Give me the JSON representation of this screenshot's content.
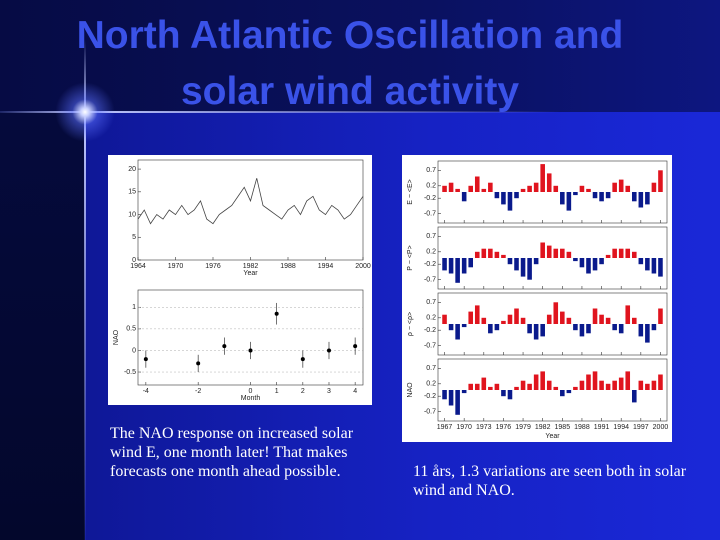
{
  "slide": {
    "title_lines": [
      "North Atlantic Oscillation and",
      "solar wind activity"
    ],
    "left_caption": "The NAO response on increased solar wind E, one month later! That makes forecasts one month ahead possible.",
    "right_caption": "11 års, 1.3 variations are seen both in solar wind and NAO."
  },
  "chart_data": [
    {
      "type": "line",
      "xlabel": "Year",
      "color": "#444444",
      "x": [
        1964,
        1965,
        1966,
        1967,
        1968,
        1969,
        1970,
        1971,
        1972,
        1973,
        1974,
        1975,
        1976,
        1977,
        1978,
        1979,
        1980,
        1981,
        1982,
        1983,
        1984,
        1985,
        1986,
        1987,
        1988,
        1989,
        1990,
        1991,
        1992,
        1993,
        1994,
        1995,
        1996,
        1997,
        1998,
        1999,
        2000
      ],
      "values": [
        9,
        11,
        8,
        10,
        9,
        11,
        10,
        12,
        10,
        11,
        13,
        9,
        8,
        10,
        11,
        12,
        14,
        16,
        13,
        18,
        12,
        11,
        10,
        9,
        11,
        12,
        10,
        13,
        14,
        11,
        10,
        12,
        11,
        9,
        10,
        12,
        14
      ],
      "xlim": [
        1964,
        2000
      ],
      "xticks": [
        1964,
        1970,
        1976,
        1982,
        1988,
        1994,
        2000
      ],
      "ylim": [
        0,
        22
      ],
      "yticks": [
        0,
        5,
        10,
        15,
        20
      ]
    },
    {
      "type": "scatter",
      "xlabel": "Month",
      "ylabel": "NAO",
      "color": "#000000",
      "x": [
        -4,
        -2,
        -1,
        0,
        1,
        2,
        3,
        4
      ],
      "values": [
        -0.2,
        -0.3,
        0.1,
        0.0,
        0.85,
        -0.2,
        0.0,
        0.1
      ],
      "errors": [
        0.2,
        0.2,
        0.2,
        0.2,
        0.25,
        0.2,
        0.2,
        0.2
      ],
      "xlim": [
        -4.3,
        4.3
      ],
      "xticks": [
        -4,
        -2,
        0,
        1,
        2,
        3,
        4
      ],
      "ylim": [
        -0.8,
        1.4
      ],
      "yticks": [
        -0.5,
        0,
        0.5,
        1
      ]
    },
    {
      "type": "bar-panels",
      "xlabel": "Year",
      "positive_color": "#e0141e",
      "negative_color": "#0a1a8c",
      "x": [
        1967,
        1968,
        1969,
        1970,
        1971,
        1972,
        1973,
        1974,
        1975,
        1976,
        1977,
        1978,
        1979,
        1980,
        1981,
        1982,
        1983,
        1984,
        1985,
        1986,
        1987,
        1988,
        1989,
        1990,
        1991,
        1992,
        1993,
        1994,
        1995,
        1996,
        1997,
        1998,
        1999,
        2000
      ],
      "xlim": [
        1966,
        2001
      ],
      "xticks": [
        1967,
        1970,
        1973,
        1976,
        1979,
        1982,
        1985,
        1988,
        1991,
        1994,
        1997,
        2000
      ],
      "panels": [
        {
          "ylabel": "E − <E>",
          "ylim": [
            -1,
            1
          ],
          "yticks": [
            -0.7,
            -0.2,
            0.2,
            0.7
          ],
          "values": [
            0.2,
            0.3,
            0.1,
            -0.3,
            0.2,
            0.5,
            0.1,
            0.3,
            -0.2,
            -0.4,
            -0.6,
            -0.2,
            0.1,
            0.2,
            0.3,
            0.9,
            0.6,
            0.2,
            -0.4,
            -0.6,
            -0.1,
            0.2,
            0.1,
            -0.2,
            -0.3,
            -0.2,
            0.3,
            0.4,
            0.2,
            -0.3,
            -0.5,
            -0.4,
            0.3,
            0.7
          ]
        },
        {
          "ylabel": "P − <P>",
          "ylim": [
            -1,
            1
          ],
          "yticks": [
            -0.7,
            -0.2,
            0.2,
            0.7
          ],
          "values": [
            -0.4,
            -0.5,
            -0.8,
            -0.5,
            -0.3,
            0.2,
            0.3,
            0.3,
            0.2,
            0.1,
            -0.2,
            -0.4,
            -0.6,
            -0.7,
            -0.2,
            0.5,
            0.4,
            0.3,
            0.3,
            0.2,
            -0.1,
            -0.3,
            -0.5,
            -0.4,
            -0.2,
            0.1,
            0.3,
            0.3,
            0.3,
            0.2,
            -0.2,
            -0.4,
            -0.5,
            -0.6
          ]
        },
        {
          "ylabel": "ρ − <ρ>",
          "ylim": [
            -1,
            1
          ],
          "yticks": [
            -0.7,
            -0.2,
            0.2,
            0.7
          ],
          "values": [
            0.3,
            -0.2,
            -0.5,
            -0.1,
            0.4,
            0.6,
            0.2,
            -0.3,
            -0.2,
            0.1,
            0.3,
            0.5,
            0.2,
            -0.3,
            -0.5,
            -0.4,
            0.3,
            0.7,
            0.4,
            0.2,
            -0.2,
            -0.4,
            -0.3,
            0.5,
            0.3,
            0.2,
            -0.2,
            -0.3,
            0.6,
            0.2,
            -0.4,
            -0.6,
            -0.2,
            0.5
          ]
        },
        {
          "ylabel": "NAO",
          "ylim": [
            -1,
            1
          ],
          "yticks": [
            -0.7,
            -0.2,
            0.2,
            0.7
          ],
          "values": [
            -0.3,
            -0.5,
            -0.8,
            -0.1,
            0.2,
            0.2,
            0.4,
            0.1,
            0.2,
            -0.2,
            -0.3,
            0.1,
            0.3,
            0.2,
            0.5,
            0.6,
            0.3,
            0.1,
            -0.2,
            -0.1,
            0.1,
            0.3,
            0.5,
            0.6,
            0.3,
            0.2,
            0.3,
            0.4,
            0.6,
            -0.4,
            0.3,
            0.2,
            0.3,
            0.5
          ]
        }
      ]
    }
  ]
}
